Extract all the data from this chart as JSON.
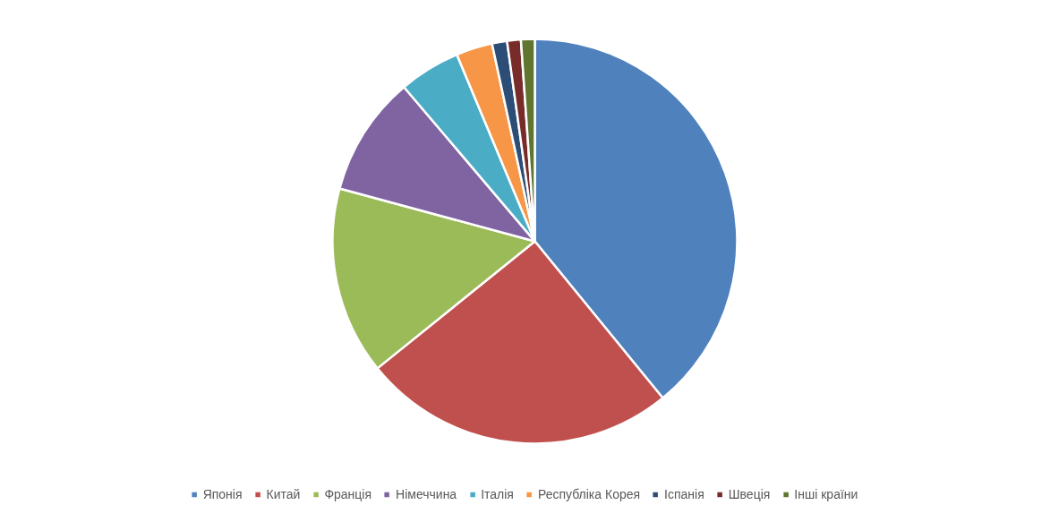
{
  "chart_data": {
    "type": "pie",
    "categories": [
      "Японія",
      "Китай",
      "Франція",
      "Німеччина",
      "Італія",
      "Республіка Корея",
      "Іспанія",
      "Швеція",
      "Інші країни"
    ],
    "values": [
      39.1,
      25.1,
      15.0,
      9.6,
      4.9,
      2.9,
      1.2,
      1.1,
      1.1
    ],
    "colors": [
      "#4f81bd",
      "#c0504d",
      "#9bbb59",
      "#8064a2",
      "#4bacc6",
      "#f79646",
      "#2c4d75",
      "#772c2a",
      "#5f7530"
    ],
    "legend": "bottom"
  }
}
